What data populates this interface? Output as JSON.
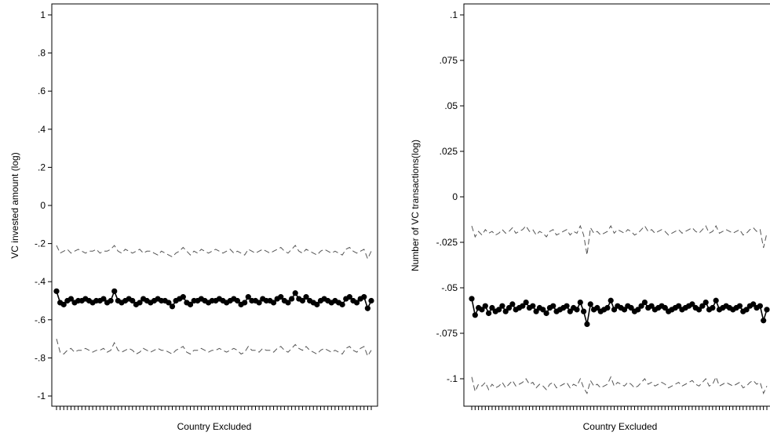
{
  "chart_data": [
    {
      "type": "line",
      "xlabel": "Country Excluded",
      "ylabel": "VC invested amount (log)",
      "ylim": [
        -1,
        1
      ],
      "yticks": [
        -1,
        -0.8,
        -0.6,
        -0.4,
        -0.2,
        0,
        0.2,
        0.4,
        0.6,
        0.8,
        1
      ],
      "ytick_labels": [
        "-1",
        "-.8",
        "-.6",
        "-.4",
        "-.2",
        "0",
        ".2",
        ".4",
        ".6",
        ".8",
        "1"
      ],
      "n_excluded": 88,
      "x_tick_labels_legible": false,
      "grid": false,
      "legend": "none",
      "series": [
        {
          "role": "estimate",
          "values": [
            -0.45,
            -0.51,
            -0.52,
            -0.5,
            -0.49,
            -0.51,
            -0.5,
            -0.5,
            -0.49,
            -0.5,
            -0.51,
            -0.5,
            -0.5,
            -0.49,
            -0.51,
            -0.5,
            -0.45,
            -0.5,
            -0.51,
            -0.5,
            -0.49,
            -0.5,
            -0.52,
            -0.51,
            -0.49,
            -0.5,
            -0.51,
            -0.5,
            -0.49,
            -0.5,
            -0.5,
            -0.51,
            -0.53,
            -0.5,
            -0.49,
            -0.48,
            -0.51,
            -0.52,
            -0.5,
            -0.5,
            -0.49,
            -0.5,
            -0.51,
            -0.5,
            -0.5,
            -0.49,
            -0.5,
            -0.51,
            -0.5,
            -0.49,
            -0.5,
            -0.52,
            -0.51,
            -0.48,
            -0.5,
            -0.5,
            -0.51,
            -0.49,
            -0.5,
            -0.5,
            -0.51,
            -0.49,
            -0.48,
            -0.5,
            -0.51,
            -0.49,
            -0.46,
            -0.49,
            -0.5,
            -0.48,
            -0.5,
            -0.51,
            -0.52,
            -0.5,
            -0.49,
            -0.5,
            -0.51,
            -0.5,
            -0.51,
            -0.52,
            -0.49,
            -0.48,
            -0.5,
            -0.51,
            -0.49,
            -0.48,
            -0.54,
            -0.5
          ]
        },
        {
          "role": "ci-upper",
          "values": [
            -0.21,
            -0.25,
            -0.24,
            -0.23,
            -0.25,
            -0.24,
            -0.23,
            -0.24,
            -0.25,
            -0.24,
            -0.24,
            -0.23,
            -0.25,
            -0.24,
            -0.24,
            -0.23,
            -0.21,
            -0.24,
            -0.25,
            -0.23,
            -0.24,
            -0.25,
            -0.24,
            -0.23,
            -0.25,
            -0.24,
            -0.24,
            -0.25,
            -0.26,
            -0.24,
            -0.25,
            -0.26,
            -0.27,
            -0.25,
            -0.24,
            -0.22,
            -0.24,
            -0.26,
            -0.24,
            -0.25,
            -0.23,
            -0.24,
            -0.25,
            -0.24,
            -0.23,
            -0.24,
            -0.25,
            -0.24,
            -0.23,
            -0.25,
            -0.24,
            -0.25,
            -0.26,
            -0.23,
            -0.24,
            -0.25,
            -0.24,
            -0.23,
            -0.24,
            -0.25,
            -0.24,
            -0.23,
            -0.22,
            -0.24,
            -0.25,
            -0.23,
            -0.21,
            -0.24,
            -0.25,
            -0.23,
            -0.24,
            -0.25,
            -0.26,
            -0.24,
            -0.23,
            -0.24,
            -0.25,
            -0.24,
            -0.25,
            -0.26,
            -0.23,
            -0.22,
            -0.24,
            -0.25,
            -0.24,
            -0.23,
            -0.28,
            -0.24
          ]
        },
        {
          "role": "ci-lower",
          "values": [
            -0.7,
            -0.77,
            -0.78,
            -0.76,
            -0.75,
            -0.77,
            -0.76,
            -0.76,
            -0.75,
            -0.76,
            -0.77,
            -0.76,
            -0.76,
            -0.75,
            -0.77,
            -0.76,
            -0.72,
            -0.76,
            -0.77,
            -0.76,
            -0.75,
            -0.76,
            -0.78,
            -0.77,
            -0.75,
            -0.76,
            -0.77,
            -0.76,
            -0.75,
            -0.76,
            -0.76,
            -0.77,
            -0.78,
            -0.76,
            -0.75,
            -0.74,
            -0.77,
            -0.78,
            -0.76,
            -0.76,
            -0.75,
            -0.76,
            -0.77,
            -0.76,
            -0.76,
            -0.75,
            -0.76,
            -0.77,
            -0.76,
            -0.75,
            -0.76,
            -0.78,
            -0.77,
            -0.74,
            -0.76,
            -0.76,
            -0.77,
            -0.75,
            -0.76,
            -0.76,
            -0.77,
            -0.75,
            -0.74,
            -0.76,
            -0.77,
            -0.75,
            -0.73,
            -0.75,
            -0.76,
            -0.74,
            -0.76,
            -0.77,
            -0.78,
            -0.76,
            -0.75,
            -0.76,
            -0.77,
            -0.76,
            -0.77,
            -0.78,
            -0.75,
            -0.74,
            -0.76,
            -0.77,
            -0.75,
            -0.74,
            -0.79,
            -0.76
          ]
        }
      ]
    },
    {
      "type": "line",
      "xlabel": "Country Excluded",
      "ylabel": "Number of VC transactions(log)",
      "ylim": [
        -0.1125,
        0.1
      ],
      "yticks": [
        -0.1,
        -0.075,
        -0.05,
        -0.025,
        0,
        0.025,
        0.05,
        0.075,
        0.1
      ],
      "ytick_labels": [
        "-.1",
        "-.075",
        "-.05",
        "-.025",
        "0",
        ".025",
        ".05",
        ".075",
        ".1"
      ],
      "n_excluded": 88,
      "x_tick_labels_legible": false,
      "grid": false,
      "legend": "none",
      "series": [
        {
          "role": "estimate",
          "values": [
            -0.056,
            -0.065,
            -0.061,
            -0.062,
            -0.06,
            -0.064,
            -0.061,
            -0.063,
            -0.062,
            -0.06,
            -0.063,
            -0.061,
            -0.059,
            -0.062,
            -0.061,
            -0.06,
            -0.058,
            -0.061,
            -0.06,
            -0.063,
            -0.061,
            -0.062,
            -0.064,
            -0.061,
            -0.06,
            -0.063,
            -0.062,
            -0.061,
            -0.06,
            -0.063,
            -0.061,
            -0.062,
            -0.058,
            -0.063,
            -0.07,
            -0.059,
            -0.062,
            -0.061,
            -0.063,
            -0.062,
            -0.061,
            -0.057,
            -0.062,
            -0.06,
            -0.061,
            -0.062,
            -0.06,
            -0.061,
            -0.063,
            -0.062,
            -0.06,
            -0.058,
            -0.061,
            -0.06,
            -0.062,
            -0.061,
            -0.06,
            -0.061,
            -0.063,
            -0.062,
            -0.061,
            -0.06,
            -0.062,
            -0.061,
            -0.06,
            -0.059,
            -0.061,
            -0.062,
            -0.06,
            -0.058,
            -0.062,
            -0.061,
            -0.057,
            -0.062,
            -0.061,
            -0.06,
            -0.061,
            -0.062,
            -0.061,
            -0.06,
            -0.063,
            -0.062,
            -0.06,
            -0.059,
            -0.061,
            -0.06,
            -0.068,
            -0.062
          ]
        },
        {
          "role": "ci-upper",
          "values": [
            -0.016,
            -0.022,
            -0.019,
            -0.021,
            -0.018,
            -0.02,
            -0.019,
            -0.021,
            -0.02,
            -0.018,
            -0.02,
            -0.019,
            -0.017,
            -0.02,
            -0.019,
            -0.018,
            -0.016,
            -0.019,
            -0.018,
            -0.021,
            -0.019,
            -0.02,
            -0.022,
            -0.019,
            -0.018,
            -0.021,
            -0.02,
            -0.019,
            -0.018,
            -0.021,
            -0.019,
            -0.02,
            -0.016,
            -0.021,
            -0.032,
            -0.017,
            -0.02,
            -0.019,
            -0.021,
            -0.02,
            -0.019,
            -0.016,
            -0.02,
            -0.018,
            -0.019,
            -0.02,
            -0.018,
            -0.019,
            -0.021,
            -0.02,
            -0.018,
            -0.016,
            -0.019,
            -0.018,
            -0.02,
            -0.019,
            -0.018,
            -0.019,
            -0.021,
            -0.02,
            -0.019,
            -0.018,
            -0.02,
            -0.019,
            -0.018,
            -0.017,
            -0.019,
            -0.02,
            -0.018,
            -0.016,
            -0.02,
            -0.019,
            -0.016,
            -0.02,
            -0.019,
            -0.018,
            -0.019,
            -0.02,
            -0.019,
            -0.018,
            -0.021,
            -0.02,
            -0.018,
            -0.017,
            -0.019,
            -0.018,
            -0.028,
            -0.02
          ]
        },
        {
          "role": "ci-lower",
          "values": [
            -0.099,
            -0.107,
            -0.103,
            -0.104,
            -0.102,
            -0.106,
            -0.103,
            -0.105,
            -0.104,
            -0.102,
            -0.105,
            -0.103,
            -0.101,
            -0.104,
            -0.103,
            -0.102,
            -0.1,
            -0.103,
            -0.102,
            -0.105,
            -0.103,
            -0.104,
            -0.106,
            -0.103,
            -0.102,
            -0.105,
            -0.104,
            -0.103,
            -0.102,
            -0.105,
            -0.103,
            -0.104,
            -0.1,
            -0.105,
            -0.108,
            -0.101,
            -0.104,
            -0.103,
            -0.105,
            -0.104,
            -0.103,
            -0.099,
            -0.104,
            -0.102,
            -0.103,
            -0.104,
            -0.102,
            -0.103,
            -0.105,
            -0.104,
            -0.102,
            -0.1,
            -0.103,
            -0.102,
            -0.104,
            -0.103,
            -0.102,
            -0.103,
            -0.105,
            -0.104,
            -0.103,
            -0.102,
            -0.104,
            -0.103,
            -0.102,
            -0.101,
            -0.103,
            -0.104,
            -0.102,
            -0.1,
            -0.104,
            -0.103,
            -0.099,
            -0.104,
            -0.103,
            -0.102,
            -0.103,
            -0.104,
            -0.103,
            -0.102,
            -0.105,
            -0.104,
            -0.102,
            -0.101,
            -0.103,
            -0.102,
            -0.108,
            -0.104
          ]
        }
      ]
    }
  ]
}
